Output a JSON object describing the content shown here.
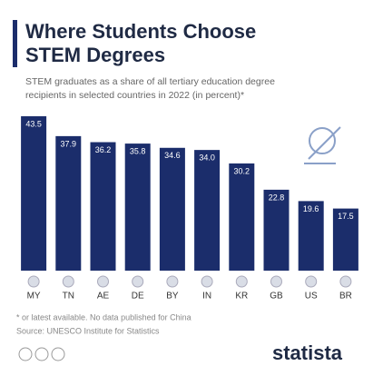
{
  "chart_data": {
    "type": "bar",
    "title_lines": [
      "Where Students Choose",
      "STEM Degrees"
    ],
    "subtitle_lines": [
      "STEM graduates as a share of all tertiary education degree",
      "recipients in selected countries in 2022 (in percent)*"
    ],
    "categories": [
      "MY",
      "TN",
      "AE",
      "DE",
      "BY",
      "IN",
      "KR",
      "GB",
      "US",
      "BR"
    ],
    "values": [
      43.5,
      37.9,
      36.2,
      35.8,
      34.6,
      34.0,
      30.2,
      22.8,
      19.6,
      17.5
    ],
    "value_labels": [
      "43.5",
      "37.9",
      "36.2",
      "35.8",
      "34.6",
      "34.0",
      "30.2",
      "22.8",
      "19.6",
      "17.5"
    ],
    "color": "#1b2d6b",
    "notes": [
      "* or latest available. No data published for China",
      "Source: UNESCO Institute for Statistics"
    ],
    "brand": "statista"
  }
}
